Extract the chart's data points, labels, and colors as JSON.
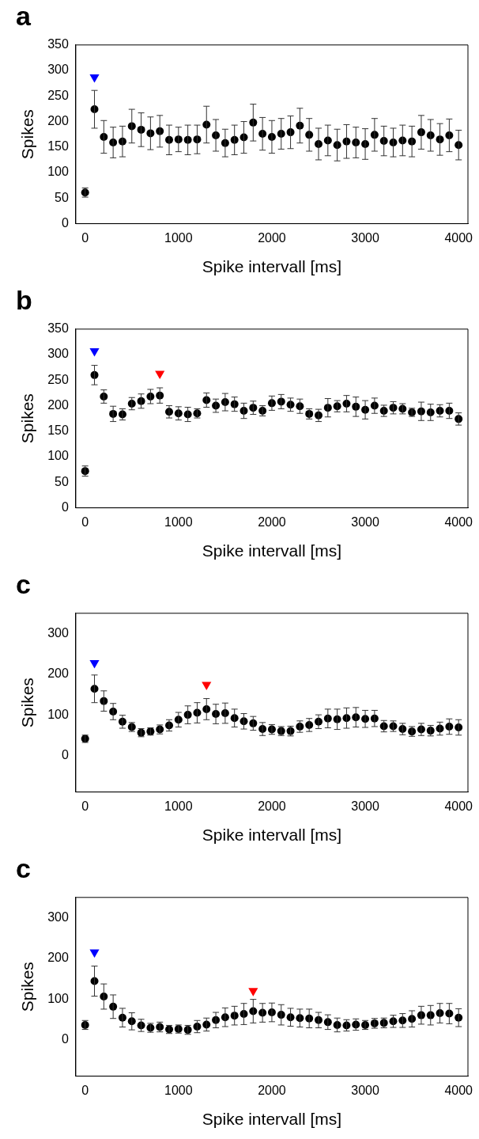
{
  "chart_data": [
    {
      "type": "scatter",
      "title": "a",
      "xlabel": "Spike intervall [ms]",
      "ylabel": "Spikes",
      "marker": "circle",
      "grid": false,
      "legend": false,
      "x": [
        0,
        100,
        200,
        300,
        400,
        500,
        600,
        700,
        800,
        900,
        1000,
        1100,
        1200,
        1300,
        1400,
        1500,
        1600,
        1700,
        1800,
        1900,
        2000,
        2100,
        2200,
        2300,
        2400,
        2500,
        2600,
        2700,
        2800,
        2900,
        3000,
        3100,
        3200,
        3300,
        3400,
        3500,
        3600,
        3700,
        3800,
        3900,
        4000
      ],
      "series": [
        {
          "color": "#000000",
          "values": [
            61,
            224,
            170,
            159,
            161,
            191,
            184,
            177,
            181,
            164,
            165,
            164,
            165,
            194,
            173,
            158,
            164,
            169,
            198,
            176,
            170,
            176,
            179,
            192,
            174,
            156,
            163,
            154,
            161,
            159,
            156,
            174,
            162,
            159,
            163,
            161,
            179,
            173,
            165,
            173,
            154
          ],
          "errors": [
            9,
            37,
            32,
            30,
            30,
            33,
            33,
            32,
            31,
            29,
            24,
            29,
            28,
            36,
            31,
            27,
            29,
            31,
            36,
            32,
            32,
            30,
            32,
            34,
            32,
            31,
            30,
            31,
            33,
            30,
            30,
            32,
            29,
            28,
            30,
            30,
            33,
            31,
            31,
            32,
            29
          ]
        },
        {
          "type": "scatter",
          "marker": "triangle",
          "x": [
            100
          ],
          "values": [
            287
          ],
          "colors": [
            "#0000ff"
          ]
        }
      ],
      "xlim": [
        -100,
        4100
      ],
      "xticks": [
        0,
        1000,
        2000,
        3000,
        4000
      ],
      "ylim": [
        0,
        350
      ],
      "yticks": [
        0,
        50,
        100,
        150,
        200,
        250,
        300,
        350
      ]
    },
    {
      "type": "scatter",
      "title": "b",
      "xlabel": "Spike intervall [ms]",
      "ylabel": "Spikes",
      "marker": "circle",
      "grid": false,
      "legend": false,
      "x": [
        0,
        100,
        200,
        300,
        400,
        500,
        600,
        700,
        800,
        900,
        1000,
        1100,
        1200,
        1300,
        1400,
        1500,
        1600,
        1700,
        1800,
        1900,
        2000,
        2100,
        2200,
        2300,
        2400,
        2500,
        2600,
        2700,
        2800,
        2900,
        3000,
        3100,
        3200,
        3300,
        3400,
        3500,
        3600,
        3700,
        3800,
        3900,
        4000
      ],
      "series": [
        {
          "color": "#000000",
          "values": [
            72,
            260,
            218,
            184,
            183,
            204,
            209,
            218,
            220,
            188,
            185,
            183,
            185,
            211,
            200,
            207,
            203,
            190,
            196,
            190,
            205,
            208,
            202,
            199,
            184,
            181,
            196,
            199,
            204,
            198,
            192,
            200,
            190,
            196,
            194,
            187,
            189,
            187,
            190,
            190,
            174
          ],
          "errors": [
            10,
            19,
            13,
            15,
            11,
            12,
            14,
            14,
            15,
            12,
            13,
            14,
            9,
            14,
            13,
            17,
            14,
            15,
            13,
            10,
            14,
            14,
            13,
            14,
            10,
            12,
            18,
            11,
            16,
            19,
            18,
            15,
            11,
            12,
            10,
            8,
            18,
            16,
            12,
            15,
            12
          ]
        },
        {
          "type": "scatter",
          "marker": "triangle",
          "x": [
            100,
            800
          ],
          "values": [
            307,
            263
          ],
          "colors": [
            "#0000ff",
            "#ff0000"
          ]
        }
      ],
      "xlim": [
        -100,
        4100
      ],
      "xticks": [
        0,
        1000,
        2000,
        3000,
        4000
      ],
      "ylim": [
        0,
        350
      ],
      "yticks": [
        0,
        50,
        100,
        150,
        200,
        250,
        300,
        350
      ]
    },
    {
      "type": "scatter",
      "title": "c",
      "xlabel": "Spike intervall [ms]",
      "ylabel": "Spikes",
      "marker": "circle",
      "grid": false,
      "legend": false,
      "x": [
        0,
        100,
        200,
        300,
        400,
        500,
        600,
        700,
        800,
        900,
        1000,
        1100,
        1200,
        1300,
        1400,
        1500,
        1600,
        1700,
        1800,
        1900,
        2000,
        2100,
        2200,
        2300,
        2400,
        2500,
        2600,
        2700,
        2800,
        2900,
        3000,
        3100,
        3200,
        3300,
        3400,
        3500,
        3600,
        3700,
        3800,
        3900,
        4000
      ],
      "series": [
        {
          "color": "#000000",
          "values": [
            41,
            164,
            134,
            108,
            83,
            70,
            56,
            59,
            64,
            74,
            88,
            100,
            105,
            114,
            102,
            104,
            92,
            84,
            79,
            65,
            64,
            60,
            60,
            71,
            75,
            83,
            91,
            89,
            92,
            94,
            90,
            91,
            72,
            72,
            65,
            59,
            64,
            61,
            66,
            71,
            69
          ],
          "errors": [
            9,
            34,
            25,
            20,
            16,
            11,
            10,
            9,
            11,
            14,
            18,
            22,
            25,
            26,
            24,
            25,
            22,
            19,
            17,
            16,
            12,
            11,
            12,
            14,
            16,
            17,
            23,
            25,
            25,
            24,
            21,
            20,
            14,
            13,
            14,
            12,
            15,
            13,
            16,
            19,
            19
          ]
        },
        {
          "type": "scatter",
          "marker": "triangle",
          "x": [
            100,
            1300
          ],
          "values": [
            228,
            174
          ],
          "colors": [
            "#0000ff",
            "#ff0000"
          ]
        }
      ],
      "xlim": [
        -100,
        4100
      ],
      "xticks": [
        0,
        1000,
        2000,
        3000,
        4000
      ],
      "ylim": [
        -90,
        350
      ],
      "yticks": [
        0,
        100,
        200,
        300
      ]
    },
    {
      "type": "scatter",
      "title": "c",
      "xlabel": "Spike intervall [ms]",
      "ylabel": "Spikes",
      "marker": "circle",
      "grid": false,
      "legend": false,
      "x": [
        0,
        100,
        200,
        300,
        400,
        500,
        600,
        700,
        800,
        900,
        1000,
        1100,
        1200,
        1300,
        1400,
        1500,
        1600,
        1700,
        1800,
        1900,
        2000,
        2100,
        2200,
        2300,
        2400,
        2500,
        2600,
        2700,
        2800,
        2900,
        3000,
        3100,
        3200,
        3300,
        3400,
        3500,
        3600,
        3700,
        3800,
        3900,
        4000
      ],
      "series": [
        {
          "color": "#000000",
          "values": [
            36,
            144,
            106,
            81,
            54,
            45,
            35,
            29,
            31,
            25,
            26,
            24,
            32,
            37,
            48,
            55,
            59,
            63,
            70,
            66,
            67,
            61,
            55,
            53,
            52,
            48,
            43,
            36,
            35,
            37,
            36,
            40,
            41,
            45,
            47,
            51,
            60,
            60,
            65,
            64,
            54
          ],
          "errors": [
            11,
            37,
            31,
            29,
            23,
            21,
            15,
            11,
            12,
            10,
            10,
            11,
            15,
            16,
            19,
            23,
            23,
            26,
            29,
            23,
            23,
            25,
            22,
            22,
            23,
            19,
            18,
            17,
            14,
            14,
            11,
            12,
            12,
            15,
            17,
            20,
            22,
            24,
            24,
            25,
            22
          ]
        },
        {
          "type": "scatter",
          "marker": "triangle",
          "x": [
            100,
            1800
          ],
          "values": [
            215,
            120
          ],
          "colors": [
            "#0000ff",
            "#ff0000"
          ]
        }
      ],
      "xlim": [
        -100,
        4100
      ],
      "xticks": [
        0,
        1000,
        2000,
        3000,
        4000
      ],
      "ylim": [
        -90,
        350
      ],
      "yticks": [
        0,
        100,
        200,
        300
      ]
    }
  ]
}
